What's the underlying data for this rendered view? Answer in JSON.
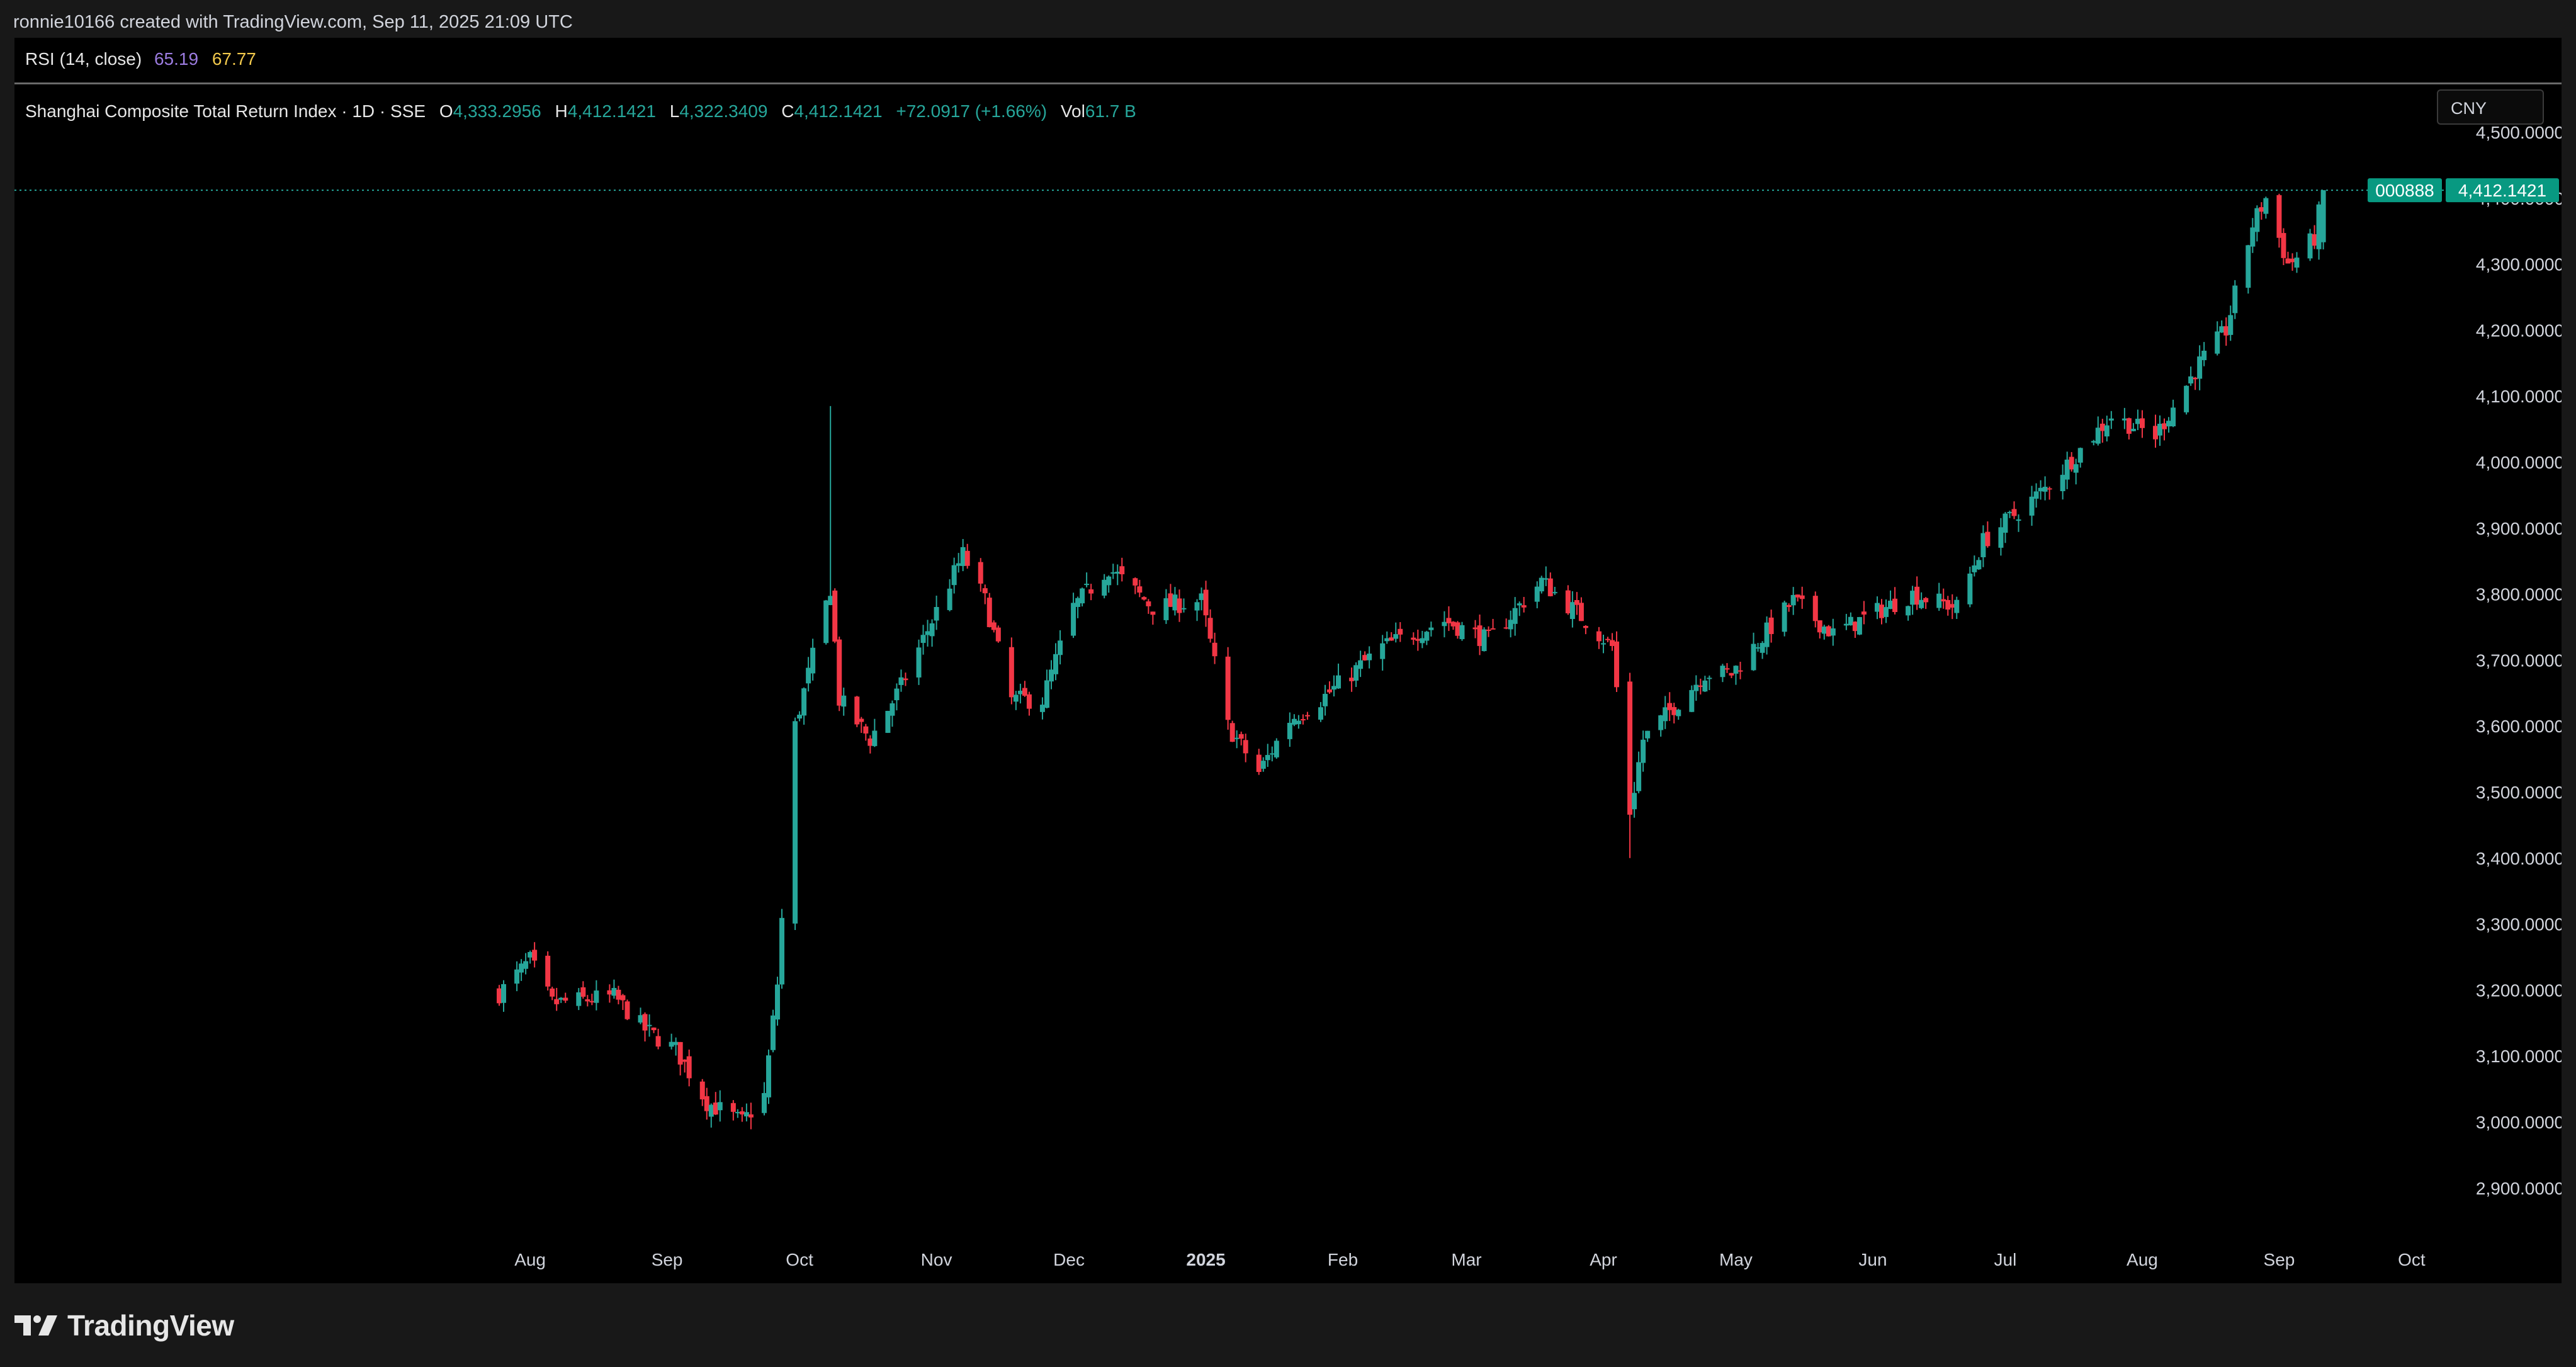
{
  "header": {
    "attribution": "ronnie10166 created with TradingView.com, Sep 11, 2025 21:09 UTC"
  },
  "rsi": {
    "label": "RSI (14, close)",
    "value1": "65.19",
    "value2": "67.77"
  },
  "legend": {
    "title": "Shanghai Composite Total Return Index · 1D · SSE",
    "o_label": "O",
    "o": "4,333.2956",
    "h_label": "H",
    "h": "4,412.1421",
    "l_label": "L",
    "l": "4,322.3409",
    "c_label": "C",
    "c": "4,412.1421",
    "change": "+72.0917 (+1.66%)",
    "vol_label": "Vol",
    "vol": "61.7 B"
  },
  "currency": "CNY",
  "price_tag": {
    "symbol": "000888",
    "price": "4,412.1421"
  },
  "brand": {
    "name": "TradingView",
    "logo": "tradingview-logo-icon"
  },
  "colors": {
    "up": "#26a69a",
    "down": "#f23645",
    "axis_text": "#d1d4dc",
    "background": "#000000"
  },
  "chart_data": {
    "type": "candlestick",
    "ylim": [
      2850,
      4600
    ],
    "y_ticks": [
      "4,500.0000",
      "4,400.0000",
      "4,300.0000",
      "4,200.0000",
      "4,100.0000",
      "4,000.0000",
      "3,900.0000",
      "3,800.0000",
      "3,700.0000",
      "3,600.0000",
      "3,500.0000",
      "3,400.0000",
      "3,300.0000",
      "3,200.0000",
      "3,100.0000",
      "3,000.0000",
      "2,900.0000"
    ],
    "y_tick_values": [
      4500,
      4400,
      4300,
      4200,
      4100,
      4000,
      3900,
      3800,
      3700,
      3600,
      3500,
      3400,
      3300,
      3200,
      3100,
      3000,
      2900
    ],
    "x_start_date": "2024-07-25",
    "x_end_date": "2025-10-06",
    "x_ticks": [
      {
        "label": "Aug",
        "date": "2024-08-01"
      },
      {
        "label": "Sep",
        "date": "2024-09-01"
      },
      {
        "label": "Oct",
        "date": "2024-10-01"
      },
      {
        "label": "Nov",
        "date": "2024-11-01"
      },
      {
        "label": "Dec",
        "date": "2024-12-01"
      },
      {
        "label": "2025",
        "date": "2025-01-01",
        "bold": true
      },
      {
        "label": "Feb",
        "date": "2025-02-01"
      },
      {
        "label": "Mar",
        "date": "2025-03-01"
      },
      {
        "label": "Apr",
        "date": "2025-04-01"
      },
      {
        "label": "May",
        "date": "2025-05-01"
      },
      {
        "label": "Jun",
        "date": "2025-06-01"
      },
      {
        "label": "Jul",
        "date": "2025-07-01"
      },
      {
        "label": "Aug",
        "date": "2025-08-01"
      },
      {
        "label": "Sep",
        "date": "2025-09-01"
      },
      {
        "label": "Oct",
        "date": "2025-10-01"
      }
    ],
    "last_price": 4412.1421,
    "waypoints": [
      [
        "2024-07-25",
        3195
      ],
      [
        "2024-08-01",
        3245
      ],
      [
        "2024-08-06",
        3180
      ],
      [
        "2024-08-20",
        3190
      ],
      [
        "2024-08-27",
        3140
      ],
      [
        "2024-09-03",
        3110
      ],
      [
        "2024-09-10",
        3030
      ],
      [
        "2024-09-18",
        3000
      ],
      [
        "2024-09-23",
        3040
      ],
      [
        "2024-09-26",
        3210
      ],
      [
        "2024-09-30",
        3600
      ],
      [
        "2024-10-08",
        3810
      ],
      [
        "2024-10-10",
        3640
      ],
      [
        "2024-10-17",
        3580
      ],
      [
        "2024-10-24",
        3660
      ],
      [
        "2024-11-07",
        3860
      ],
      [
        "2024-11-12",
        3790
      ],
      [
        "2024-11-18",
        3640
      ],
      [
        "2024-11-25",
        3640
      ],
      [
        "2024-12-02",
        3780
      ],
      [
        "2024-12-10",
        3840
      ],
      [
        "2024-12-20",
        3780
      ],
      [
        "2024-12-31",
        3790
      ],
      [
        "2025-01-06",
        3600
      ],
      [
        "2025-01-13",
        3530
      ],
      [
        "2025-01-20",
        3610
      ],
      [
        "2025-01-27",
        3640
      ],
      [
        "2025-02-10",
        3720
      ],
      [
        "2025-02-24",
        3760
      ],
      [
        "2025-03-06",
        3730
      ],
      [
        "2025-03-18",
        3820
      ],
      [
        "2025-03-28",
        3760
      ],
      [
        "2025-04-03",
        3720
      ],
      [
        "2025-04-07",
        3470
      ],
      [
        "2025-04-10",
        3580
      ],
      [
        "2025-04-24",
        3680
      ],
      [
        "2025-04-30",
        3680
      ],
      [
        "2025-05-14",
        3790
      ],
      [
        "2025-05-23",
        3740
      ],
      [
        "2025-06-10",
        3800
      ],
      [
        "2025-06-20",
        3780
      ],
      [
        "2025-06-26",
        3880
      ],
      [
        "2025-07-10",
        3960
      ],
      [
        "2025-07-25",
        4070
      ],
      [
        "2025-08-04",
        4040
      ],
      [
        "2025-08-14",
        4150
      ],
      [
        "2025-08-20",
        4200
      ],
      [
        "2025-08-26",
        4360
      ],
      [
        "2025-08-29",
        4400
      ],
      [
        "2025-09-03",
        4300
      ],
      [
        "2025-09-05",
        4310
      ],
      [
        "2025-09-09",
        4340
      ],
      [
        "2025-09-11",
        4412.1421
      ]
    ],
    "spikes": [
      {
        "date": "2024-10-08",
        "high": 4085
      },
      {
        "date": "2025-04-07",
        "low": 3400
      }
    ]
  }
}
